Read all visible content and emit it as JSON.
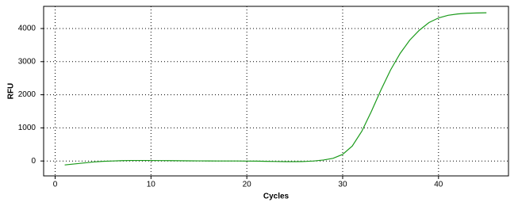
{
  "chart_data": {
    "type": "line",
    "xlabel": "Cycles",
    "ylabel": "RFU",
    "x": [
      1,
      2,
      3,
      4,
      5,
      6,
      7,
      8,
      9,
      10,
      11,
      12,
      13,
      14,
      15,
      16,
      17,
      18,
      19,
      20,
      21,
      22,
      23,
      24,
      25,
      26,
      27,
      28,
      29,
      30,
      31,
      32,
      33,
      34,
      35,
      36,
      37,
      38,
      39,
      40,
      41,
      42,
      43,
      44,
      45
    ],
    "series": [
      {
        "color": "#1a9a1a",
        "values": [
          -120,
          -90,
          -60,
          -30,
          -10,
          0,
          10,
          15,
          15,
          15,
          12,
          10,
          8,
          5,
          3,
          2,
          0,
          0,
          0,
          -3,
          -5,
          -10,
          -15,
          -20,
          -20,
          -15,
          0,
          30,
          80,
          200,
          450,
          900,
          1500,
          2150,
          2750,
          3250,
          3650,
          3950,
          4180,
          4320,
          4400,
          4440,
          4460,
          4470,
          4475
        ]
      }
    ],
    "xlim": [
      -1.2,
      47.3
    ],
    "ylim": [
      -450,
      4670
    ],
    "xticks": [
      0,
      10,
      20,
      30,
      40
    ],
    "yticks": [
      0,
      1000,
      2000,
      3000,
      4000
    ],
    "grid": true
  }
}
